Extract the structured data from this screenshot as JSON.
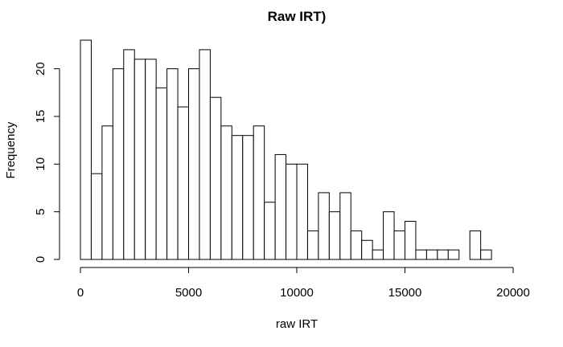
{
  "chart_data": {
    "type": "bar",
    "title": "Raw IRT)",
    "xlabel": "raw IRT",
    "ylabel": "Frequency",
    "bin_width": 500,
    "bins_start": 0,
    "values": [
      23,
      9,
      14,
      20,
      22,
      21,
      21,
      18,
      20,
      16,
      20,
      22,
      17,
      14,
      13,
      13,
      14,
      6,
      11,
      10,
      10,
      3,
      7,
      5,
      7,
      3,
      2,
      1,
      5,
      3,
      4,
      1,
      1,
      1,
      1,
      0,
      3,
      1
    ],
    "xlim": [
      0,
      20000
    ],
    "ylim": [
      0,
      23
    ],
    "x_ticks": [
      0,
      5000,
      10000,
      15000,
      20000
    ],
    "y_ticks": [
      0,
      5,
      10,
      15,
      20
    ],
    "x_tick_labels": [
      "0",
      "5000",
      "10000",
      "15000",
      "20000"
    ],
    "y_tick_labels": [
      "0",
      "5",
      "10",
      "15",
      "20"
    ],
    "grid": false,
    "legend": "none"
  }
}
